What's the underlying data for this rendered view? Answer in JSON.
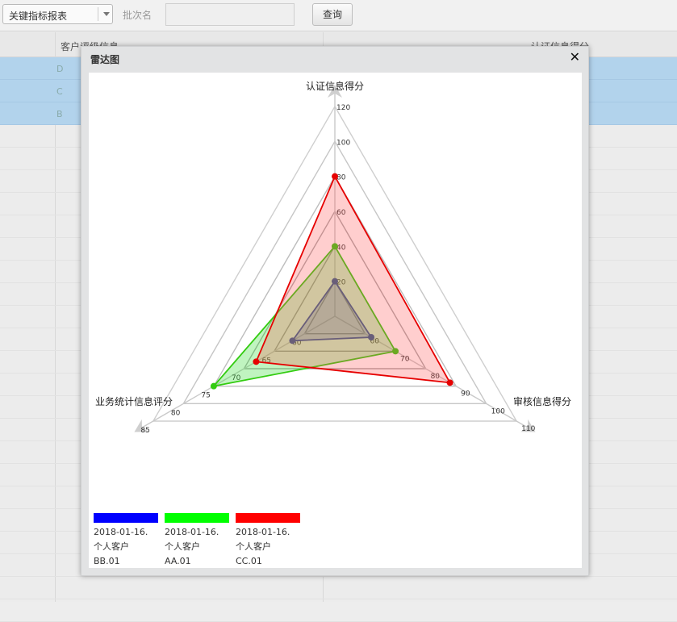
{
  "toolbar": {
    "report_select": "关键指标报表",
    "batch_label": "批次名",
    "batch_value": "",
    "query_label": "查询"
  },
  "grid": {
    "columns": [
      "",
      "客户评级信息",
      "",
      "认证信息得分"
    ],
    "rows": [
      {
        "id": "D",
        "selected": true
      },
      {
        "id": "C",
        "selected": true
      },
      {
        "id": "B",
        "selected": true
      }
    ]
  },
  "dialog": {
    "title": "雷达图",
    "close_icon": "close-icon"
  },
  "chart_data": {
    "type": "radar",
    "title": "",
    "axes": [
      {
        "name": "认证信息得分",
        "ticks": [
          20,
          40,
          60,
          80,
          100,
          120
        ],
        "range": [
          0,
          120
        ]
      },
      {
        "name": "审核信息得分",
        "ticks": [
          60,
          70,
          80,
          90,
          100,
          110
        ],
        "range": [
          50,
          110
        ]
      },
      {
        "name": "业务统计信息评分",
        "ticks": [
          60,
          65,
          70,
          75,
          80,
          85
        ],
        "range": [
          55,
          85
        ]
      }
    ],
    "series": [
      {
        "name": "2018-01-16.个人客户BB.01",
        "color": "#0000ff",
        "values": [
          20,
          62,
          62
        ]
      },
      {
        "name": "2018-01-16.个人客户AA.01",
        "color": "#00dd00",
        "values": [
          40,
          70,
          75
        ]
      },
      {
        "name": "2018-01-16.个人客户CC.01",
        "color": "#ff0000",
        "values": [
          80,
          88,
          68
        ]
      }
    ],
    "legend": "bottom-left"
  },
  "legend": [
    {
      "color": "#0000ff",
      "line1": "2018-01-16.",
      "line2": "个人客户",
      "line3": "BB.01"
    },
    {
      "color": "#00ff00",
      "line1": "2018-01-16.",
      "line2": "个人客户",
      "line3": "AA.01"
    },
    {
      "color": "#ff0000",
      "line1": "2018-01-16.",
      "line2": "个人客户",
      "line3": "CC.01"
    }
  ]
}
